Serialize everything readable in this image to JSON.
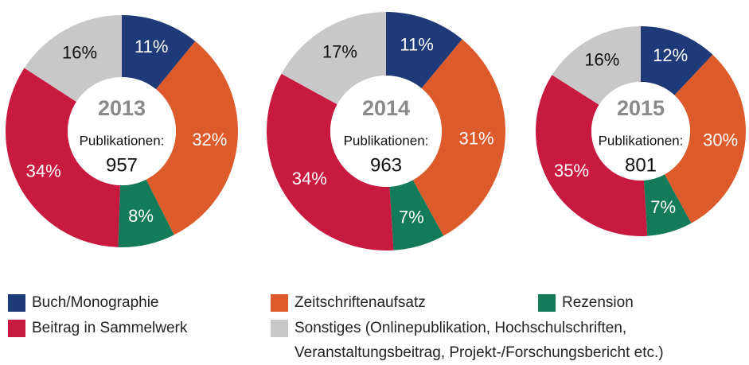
{
  "chart_data": [
    {
      "type": "pie",
      "title": "2013",
      "subtitle": "Publikationen:",
      "total": 957,
      "values": [
        11,
        32,
        8,
        34,
        16
      ],
      "value_labels": [
        "11%",
        "32%",
        "8%",
        "34%",
        "16%"
      ]
    },
    {
      "type": "pie",
      "title": "2014",
      "subtitle": "Publikationen:",
      "total": 963,
      "values": [
        11,
        31,
        7,
        34,
        17
      ],
      "value_labels": [
        "11%",
        "31%",
        "7%",
        "34%",
        "17%"
      ]
    },
    {
      "type": "pie",
      "title": "2015",
      "subtitle": "Publikationen:",
      "total": 801,
      "values": [
        12,
        30,
        7,
        35,
        16
      ],
      "value_labels": [
        "12%",
        "30%",
        "7%",
        "35%",
        "16%"
      ]
    }
  ],
  "legend": {
    "items": [
      {
        "name": "Buch/Monographie",
        "color": "#1f3a78"
      },
      {
        "name": "Zeitschriftenaufsatz",
        "color": "#dd5a2b"
      },
      {
        "name": "Rezension",
        "color": "#137a5a"
      },
      {
        "name": "Beitrag in Sammelwerk",
        "color": "#c8193f"
      },
      {
        "name": "Sonstiges (Onlinepublikation, Hochschulschriften, Veranstaltungsbeitrag, Projekt-/Forschungsbericht etc.)",
        "color": "#c8c8c8"
      }
    ]
  }
}
